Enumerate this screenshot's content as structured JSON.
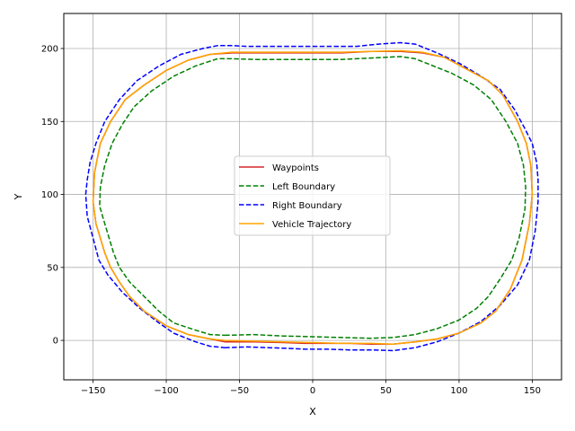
{
  "chart_data": {
    "type": "line",
    "title": "",
    "xlabel": "X",
    "ylabel": "Y",
    "xlim": [
      -170,
      170
    ],
    "ylim": [
      -27,
      224
    ],
    "xticks": [
      -150,
      -100,
      -50,
      0,
      50,
      100,
      150
    ],
    "yticks": [
      0,
      50,
      100,
      150,
      200
    ],
    "xtick_labels": [
      "−150",
      "−100",
      "−50",
      "0",
      "50",
      "100",
      "150"
    ],
    "ytick_labels": [
      "0",
      "50",
      "100",
      "150",
      "200"
    ],
    "grid": true,
    "legend_position": "center",
    "series": [
      {
        "name": "Waypoints",
        "color": "#d62728",
        "style": "solid",
        "points": [
          [
            -60,
            -1
          ],
          [
            -40,
            -1
          ],
          [
            -20,
            -1.5
          ],
          [
            -5,
            -2
          ],
          [
            10,
            -2
          ],
          [
            25,
            -2
          ],
          [
            40,
            -2.5
          ],
          [
            55,
            -2.5
          ],
          [
            70,
            -1
          ],
          [
            85,
            1
          ],
          [
            100,
            5
          ],
          [
            115,
            12
          ],
          [
            125,
            20
          ],
          [
            135,
            35
          ],
          [
            143,
            55
          ],
          [
            148,
            80
          ],
          [
            150,
            100
          ],
          [
            149,
            120
          ],
          [
            146,
            135
          ],
          [
            140,
            150
          ],
          [
            130,
            168
          ],
          [
            120,
            178
          ],
          [
            105,
            186
          ],
          [
            90,
            194
          ],
          [
            75,
            197
          ],
          [
            60,
            198
          ],
          [
            40,
            198
          ],
          [
            20,
            197
          ],
          [
            0,
            197
          ],
          [
            -15,
            197
          ],
          [
            -25,
            197
          ],
          [
            -40,
            197
          ],
          [
            -55,
            197
          ],
          [
            -70,
            196
          ],
          [
            -85,
            192
          ],
          [
            -100,
            185
          ],
          [
            -115,
            175
          ],
          [
            -128,
            165
          ],
          [
            -138,
            150
          ],
          [
            -145,
            135
          ],
          [
            -149,
            115
          ],
          [
            -150,
            95
          ],
          [
            -148,
            80
          ],
          [
            -145,
            70
          ],
          [
            -142,
            60
          ],
          [
            -138,
            50
          ],
          [
            -132,
            40
          ],
          [
            -125,
            30
          ],
          [
            -115,
            20
          ],
          [
            -100,
            10
          ],
          [
            -85,
            4
          ],
          [
            -70,
            1
          ],
          [
            -60,
            -1
          ]
        ]
      },
      {
        "name": "Left Boundary",
        "color": "#008000",
        "style": "dashed",
        "points": [
          [
            -60,
            3.5
          ],
          [
            -40,
            4
          ],
          [
            -20,
            3
          ],
          [
            0,
            2.5
          ],
          [
            20,
            2
          ],
          [
            40,
            1.5
          ],
          [
            55,
            2
          ],
          [
            70,
            4
          ],
          [
            85,
            8
          ],
          [
            100,
            14
          ],
          [
            112,
            22
          ],
          [
            120,
            30
          ],
          [
            128,
            42
          ],
          [
            136,
            55
          ],
          [
            141,
            70
          ],
          [
            145,
            90
          ],
          [
            145.5,
            105
          ],
          [
            144,
            120
          ],
          [
            140,
            135
          ],
          [
            132,
            150
          ],
          [
            122,
            165
          ],
          [
            110,
            175
          ],
          [
            95,
            183
          ],
          [
            80,
            189
          ],
          [
            70,
            193
          ],
          [
            60,
            194.5
          ],
          [
            40,
            193.5
          ],
          [
            20,
            192.5
          ],
          [
            0,
            192.5
          ],
          [
            -20,
            192.5
          ],
          [
            -40,
            192.5
          ],
          [
            -55,
            193
          ],
          [
            -65,
            193
          ],
          [
            -80,
            188
          ],
          [
            -95,
            181
          ],
          [
            -110,
            171
          ],
          [
            -122,
            160
          ],
          [
            -130,
            148
          ],
          [
            -137,
            135
          ],
          [
            -142,
            120
          ],
          [
            -145,
            105
          ],
          [
            -145.5,
            92
          ],
          [
            -142,
            80
          ],
          [
            -139,
            70
          ],
          [
            -136,
            60
          ],
          [
            -132,
            50
          ],
          [
            -125,
            40
          ],
          [
            -115,
            30
          ],
          [
            -105,
            20
          ],
          [
            -95,
            12
          ],
          [
            -80,
            7
          ],
          [
            -70,
            4
          ],
          [
            -60,
            3.5
          ]
        ]
      },
      {
        "name": "Right Boundary",
        "color": "#0000ff",
        "style": "dashed",
        "points": [
          [
            -60,
            -5
          ],
          [
            -45,
            -4.5
          ],
          [
            -30,
            -5
          ],
          [
            -15,
            -5.5
          ],
          [
            -5,
            -6
          ],
          [
            10,
            -6
          ],
          [
            25,
            -6.5
          ],
          [
            40,
            -6.5
          ],
          [
            55,
            -7
          ],
          [
            70,
            -5
          ],
          [
            85,
            -1
          ],
          [
            100,
            5
          ],
          [
            115,
            13
          ],
          [
            128,
            24
          ],
          [
            140,
            38
          ],
          [
            148,
            55
          ],
          [
            152,
            75
          ],
          [
            154,
            95
          ],
          [
            154,
            110
          ],
          [
            153,
            122
          ],
          [
            150,
            135
          ],
          [
            145,
            145
          ],
          [
            138,
            158
          ],
          [
            128,
            172
          ],
          [
            115,
            181
          ],
          [
            100,
            190
          ],
          [
            85,
            197
          ],
          [
            70,
            203
          ],
          [
            60,
            204
          ],
          [
            45,
            203
          ],
          [
            30,
            201.5
          ],
          [
            15,
            201.5
          ],
          [
            0,
            201.5
          ],
          [
            -15,
            201.5
          ],
          [
            -30,
            201.5
          ],
          [
            -45,
            201.5
          ],
          [
            -55,
            202
          ],
          [
            -65,
            202
          ],
          [
            -75,
            200
          ],
          [
            -90,
            196
          ],
          [
            -105,
            188
          ],
          [
            -120,
            178
          ],
          [
            -132,
            165
          ],
          [
            -142,
            150
          ],
          [
            -148,
            135
          ],
          [
            -152,
            122
          ],
          [
            -154,
            110
          ],
          [
            -155,
            100
          ],
          [
            -154,
            85
          ],
          [
            -150,
            70
          ],
          [
            -146,
            55
          ],
          [
            -140,
            45
          ],
          [
            -130,
            33
          ],
          [
            -118,
            22
          ],
          [
            -105,
            12
          ],
          [
            -95,
            5
          ],
          [
            -80,
            -1
          ],
          [
            -70,
            -4
          ],
          [
            -60,
            -5
          ]
        ]
      },
      {
        "name": "Vehicle Trajectory",
        "color": "#ffa500",
        "style": "solid",
        "points": [
          [
            -60,
            0
          ],
          [
            -40,
            -0.5
          ],
          [
            -20,
            -1
          ],
          [
            0,
            -1.5
          ],
          [
            20,
            -2
          ],
          [
            40,
            -2
          ],
          [
            55,
            -2.5
          ],
          [
            70,
            -1
          ],
          [
            85,
            1
          ],
          [
            100,
            5
          ],
          [
            115,
            12
          ],
          [
            125,
            20
          ],
          [
            135,
            35
          ],
          [
            143,
            55
          ],
          [
            148,
            80
          ],
          [
            150,
            100
          ],
          [
            149,
            120
          ],
          [
            146,
            135
          ],
          [
            140,
            150
          ],
          [
            130,
            168
          ],
          [
            120,
            178
          ],
          [
            105,
            186
          ],
          [
            90,
            194
          ],
          [
            75,
            197.5
          ],
          [
            60,
            198.5
          ],
          [
            40,
            198
          ],
          [
            20,
            197.5
          ],
          [
            0,
            197.5
          ],
          [
            -20,
            197.5
          ],
          [
            -40,
            197.5
          ],
          [
            -55,
            197.5
          ],
          [
            -70,
            196
          ],
          [
            -85,
            192
          ],
          [
            -100,
            185
          ],
          [
            -115,
            175
          ],
          [
            -128,
            165
          ],
          [
            -138,
            150
          ],
          [
            -145,
            135
          ],
          [
            -149,
            115
          ],
          [
            -150,
            95
          ],
          [
            -148,
            80
          ],
          [
            -145,
            70
          ],
          [
            -142,
            60
          ],
          [
            -138,
            50
          ],
          [
            -132,
            40
          ],
          [
            -125,
            30
          ],
          [
            -115,
            20
          ],
          [
            -100,
            10
          ],
          [
            -85,
            4
          ],
          [
            -70,
            1
          ],
          [
            -60,
            0
          ]
        ]
      }
    ]
  }
}
